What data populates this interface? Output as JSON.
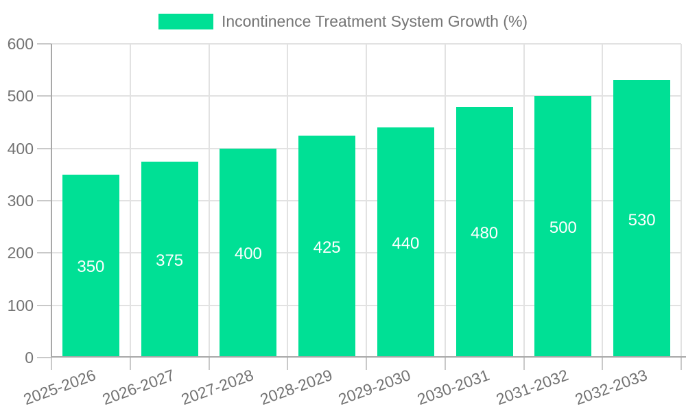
{
  "chart_data": {
    "type": "bar",
    "title": "Incontinence Treatment System Growth (%)",
    "legend": {
      "label": "Incontinence Treatment System Growth (%)",
      "position": "top"
    },
    "categories": [
      "2025-2026",
      "2026-2027",
      "2027-2028",
      "2028-2029",
      "2029-2030",
      "2030-2031",
      "2031-2032",
      "2032-2033"
    ],
    "series": [
      {
        "name": "Incontinence Treatment System Growth (%)",
        "values": [
          350,
          375,
          400,
          425,
          440,
          480,
          500,
          530
        ]
      }
    ],
    "value_labels": [
      "350",
      "375",
      "400",
      "425",
      "440",
      "480",
      "500",
      "530"
    ],
    "value_label_position": "inside-center",
    "xlabel": "",
    "ylabel": "",
    "ylim": [
      0,
      600
    ],
    "yticks": [
      0,
      100,
      200,
      300,
      400,
      500,
      600
    ],
    "grid": true,
    "x_tick_rotation_deg": -20,
    "colors": {
      "bar": "#00E095",
      "value_label": "#ffffff",
      "grid_line": "#e2e2e2",
      "axis_line": "#a8a8a8",
      "tick_mark": "#c9c9c9",
      "axis_label": "#737373",
      "legend_text": "#757575",
      "background": "#ffffff"
    }
  }
}
